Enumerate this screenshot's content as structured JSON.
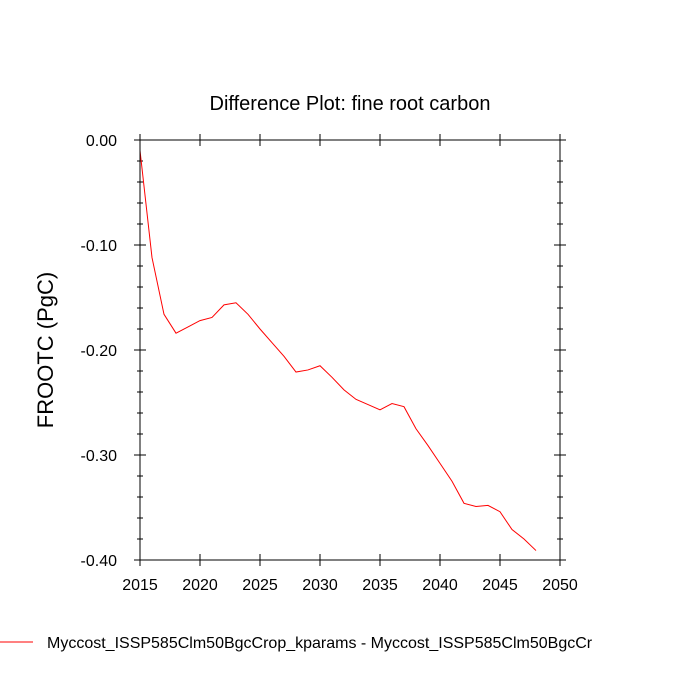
{
  "chart_data": {
    "type": "line",
    "title": "Difference Plot: fine root carbon",
    "xlabel": "",
    "ylabel": "FROOTC  (PgC)",
    "xlim": [
      2015,
      2050
    ],
    "ylim": [
      -0.4,
      0.0
    ],
    "x_ticks": [
      "2015",
      "2020",
      "2025",
      "2030",
      "2035",
      "2040",
      "2045",
      "2050"
    ],
    "y_ticks": [
      "0.00",
      "-0.10",
      "-0.20",
      "-0.30",
      "-0.40"
    ],
    "legend_position": "bottom-left",
    "series": [
      {
        "name": "Myccost_ISSP585Clm50BgcCrop_kparams - Myccost_ISSP585Clm50BgcCr",
        "color": "#ff0000",
        "x": [
          2015,
          2016,
          2017,
          2018,
          2019,
          2020,
          2021,
          2022,
          2023,
          2024,
          2025,
          2026,
          2027,
          2028,
          2029,
          2030,
          2031,
          2032,
          2033,
          2034,
          2035,
          2036,
          2037,
          2038,
          2039,
          2040,
          2041,
          2042,
          2043,
          2044,
          2045,
          2046,
          2047,
          2048
        ],
        "values": [
          -0.01,
          -0.112,
          -0.166,
          -0.184,
          -0.178,
          -0.172,
          -0.169,
          -0.157,
          -0.155,
          -0.166,
          -0.18,
          -0.193,
          -0.206,
          -0.221,
          -0.219,
          -0.215,
          -0.226,
          -0.238,
          -0.247,
          -0.252,
          -0.257,
          -0.251,
          -0.254,
          -0.275,
          -0.291,
          -0.308,
          -0.325,
          -0.346,
          -0.349,
          -0.348,
          -0.354,
          -0.371,
          -0.38,
          -0.391
        ]
      }
    ]
  }
}
